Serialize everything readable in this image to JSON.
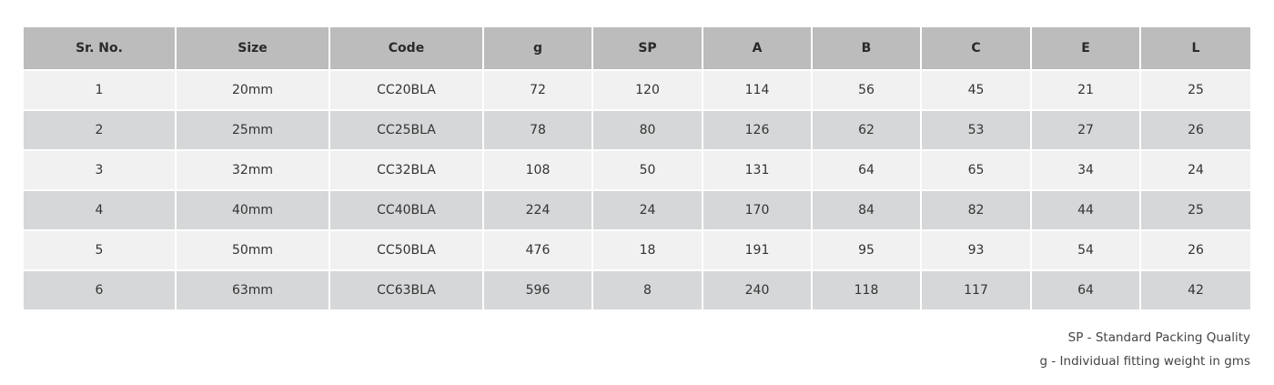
{
  "table": {
    "headers": [
      "Sr. No.",
      "Size",
      "Code",
      "g",
      "SP",
      "A",
      "B",
      "C",
      "E",
      "L"
    ],
    "rows": [
      [
        1,
        "20mm",
        "CC20BLA",
        72,
        120,
        114,
        56,
        45,
        21,
        25
      ],
      [
        2,
        "25mm",
        "CC25BLA",
        78,
        80,
        126,
        62,
        53,
        27,
        26
      ],
      [
        3,
        "32mm",
        "CC32BLA",
        108,
        50,
        131,
        64,
        65,
        34,
        24
      ],
      [
        4,
        "40mm",
        "CC40BLA",
        224,
        24,
        170,
        84,
        82,
        44,
        25
      ],
      [
        5,
        "50mm",
        "CC50BLA",
        476,
        18,
        191,
        95,
        93,
        54,
        26
      ],
      [
        6,
        "63mm",
        "CC63BLA",
        596,
        8,
        240,
        118,
        117,
        64,
        42
      ]
    ]
  },
  "notes": [
    "SP - Standard Packing Quality",
    "g - Individual fitting weight in gms"
  ]
}
